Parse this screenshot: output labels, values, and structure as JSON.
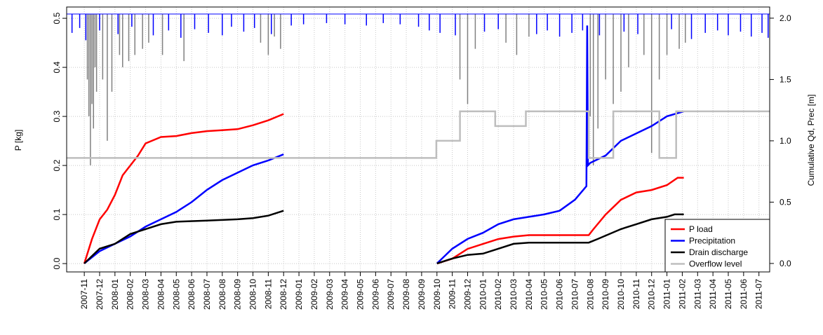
{
  "chart_data": {
    "type": "line",
    "ylabel": "P [kg]",
    "y2label": "Cumulative Qd, Prec [m]",
    "xlim": [
      -1.15,
      44.7
    ],
    "ylim": [
      -0.017,
      0.523
    ],
    "y2lim": [
      -0.069,
      2.091
    ],
    "yticks": [
      {
        "value": 0,
        "label": "0.0"
      },
      0.1,
      0.2,
      0.3,
      0.4,
      0.5
    ],
    "y2ticks": [
      {
        "value": 0,
        "label": "0.0"
      },
      0.5,
      {
        "value": 1,
        "label": "1.0"
      },
      1.5,
      {
        "value": 2,
        "label": "2.0"
      }
    ],
    "xticks": [
      {
        "value": 0,
        "label": "2007-11"
      },
      {
        "value": 1,
        "label": "2007-12"
      },
      {
        "value": 2,
        "label": "2008-01"
      },
      {
        "value": 3,
        "label": "2008-02"
      },
      {
        "value": 4,
        "label": "2008-03"
      },
      {
        "value": 5,
        "label": "2008-04"
      },
      {
        "value": 6,
        "label": "2008-05"
      },
      {
        "value": 7,
        "label": "2008-06"
      },
      {
        "value": 8,
        "label": "2008-07"
      },
      {
        "value": 9,
        "label": "2008-08"
      },
      {
        "value": 10,
        "label": "2008-09"
      },
      {
        "value": 11,
        "label": "2008-10"
      },
      {
        "value": 12,
        "label": "2008-11"
      },
      {
        "value": 13,
        "label": "2008-12"
      },
      {
        "value": 14,
        "label": "2009-01"
      },
      {
        "value": 15,
        "label": "2009-02"
      },
      {
        "value": 16,
        "label": "2009-03"
      },
      {
        "value": 17,
        "label": "2009-04"
      },
      {
        "value": 18,
        "label": "2009-05"
      },
      {
        "value": 19,
        "label": "2009-06"
      },
      {
        "value": 20,
        "label": "2009-07"
      },
      {
        "value": 21,
        "label": "2009-08"
      },
      {
        "value": 22,
        "label": "2009-09"
      },
      {
        "value": 23,
        "label": "2009-10"
      },
      {
        "value": 24,
        "label": "2009-11"
      },
      {
        "value": 25,
        "label": "2009-12"
      },
      {
        "value": 26,
        "label": "2010-01"
      },
      {
        "value": 27,
        "label": "2010-02"
      },
      {
        "value": 28,
        "label": "2010-03"
      },
      {
        "value": 29,
        "label": "2010-04"
      },
      {
        "value": 30,
        "label": "2010-05"
      },
      {
        "value": 31,
        "label": "2010-06"
      },
      {
        "value": 32,
        "label": "2010-07"
      },
      {
        "value": 33,
        "label": "2010-08"
      },
      {
        "value": 34,
        "label": "2010-09"
      },
      {
        "value": 35,
        "label": "2010-10"
      },
      {
        "value": 36,
        "label": "2010-11"
      },
      {
        "value": 37,
        "label": "2010-12"
      },
      {
        "value": 38,
        "label": "2011-01"
      },
      {
        "value": 39,
        "label": "2011-02"
      },
      {
        "value": 40,
        "label": "2011-03"
      },
      {
        "value": 41,
        "label": "2011-04"
      },
      {
        "value": 42,
        "label": "2011-05"
      },
      {
        "value": 43,
        "label": "2011-06"
      },
      {
        "value": 44,
        "label": "2011-07"
      }
    ],
    "grid": true,
    "legend": "bottom-right",
    "series": [
      {
        "name": "P load",
        "color": "#ff0000",
        "axis": "y",
        "x": [
          0,
          0.5,
          1,
          1.5,
          2,
          2.5,
          3,
          3.5,
          4,
          5,
          6,
          7,
          8,
          9,
          10,
          11,
          12,
          13,
          null,
          23,
          24,
          25,
          26,
          27,
          28,
          29,
          32.9,
          33.2,
          34,
          35,
          36,
          37,
          38,
          38.7,
          39.1
        ],
        "values": [
          0,
          0.05,
          0.09,
          0.11,
          0.14,
          0.18,
          0.2,
          0.22,
          0.245,
          0.258,
          0.26,
          0.266,
          0.27,
          0.272,
          0.274,
          0.282,
          0.292,
          0.305,
          null,
          0,
          0.01,
          0.03,
          0.04,
          0.05,
          0.055,
          0.058,
          0.058,
          0.07,
          0.1,
          0.13,
          0.145,
          0.15,
          0.16,
          0.175,
          0.175
        ]
      },
      {
        "name": "Precipitation",
        "color": "#0000ff",
        "axis": "y2",
        "x": [
          0,
          1,
          2,
          3,
          4,
          5,
          6,
          7,
          8,
          9,
          10,
          11,
          12,
          13,
          null,
          23,
          24,
          25,
          26,
          27,
          28,
          29,
          30,
          31,
          32,
          32.75,
          32.8,
          32.85,
          33,
          34,
          35,
          36,
          37,
          38,
          39.1
        ],
        "values": [
          0,
          0.1,
          0.16,
          0.22,
          0.3,
          0.36,
          0.42,
          0.5,
          0.6,
          0.68,
          0.74,
          0.8,
          0.84,
          0.89,
          null,
          0,
          0.12,
          0.2,
          0.25,
          0.32,
          0.36,
          0.38,
          0.4,
          0.43,
          0.52,
          0.63,
          1.94,
          0.8,
          0.82,
          0.88,
          1.0,
          1.06,
          1.12,
          1.2,
          1.24
        ]
      },
      {
        "name": "Drain discharge",
        "color": "#000000",
        "axis": "y2",
        "x": [
          0,
          1,
          2,
          3,
          4,
          5,
          6,
          8,
          10,
          11,
          12,
          13,
          null,
          23,
          24,
          25,
          26,
          27,
          28,
          29,
          32.9,
          33.5,
          35,
          36,
          37,
          38,
          38.5,
          39.1
        ],
        "values": [
          0,
          0.12,
          0.16,
          0.24,
          0.28,
          0.32,
          0.34,
          0.35,
          0.36,
          0.37,
          0.39,
          0.43,
          null,
          0,
          0.04,
          0.07,
          0.08,
          0.12,
          0.16,
          0.17,
          0.17,
          0.2,
          0.28,
          0.32,
          0.36,
          0.38,
          0.4,
          0.4
        ]
      },
      {
        "name": "Overflow level",
        "color": "#bebebe",
        "axis": "y2",
        "x": [
          -1.15,
          22.96,
          22.96,
          24.5,
          24.5,
          26.8,
          26.8,
          28.8,
          28.8,
          32.9,
          32.9,
          34.5,
          34.5,
          37.5,
          37.5,
          38.6,
          38.6,
          44.7
        ],
        "values": [
          0.86,
          0.86,
          1.0,
          1.0,
          1.24,
          1.24,
          1.12,
          1.12,
          1.24,
          1.24,
          0.86,
          0.86,
          1.24,
          1.24,
          0.86,
          0.86,
          1.24,
          1.24
        ]
      }
    ],
    "hanging_bars": [
      {
        "color": "#808080",
        "x": [
          0.2,
          0.3,
          0.4,
          0.5,
          0.6,
          0.7,
          0.8,
          1.2,
          1.5,
          1.8,
          2.3,
          2.5,
          2.9,
          3.3,
          3.8,
          4.2,
          5.1,
          6.5,
          11.5,
          12.0,
          12.4,
          12.8,
          24.5,
          25.0,
          25.5,
          27.5,
          28.2,
          29.0,
          33.0,
          33.2,
          33.5,
          34.0,
          34.5,
          35.0,
          35.5,
          36.5,
          37.0,
          37.5,
          38.0,
          38.8,
          39.2
        ],
        "values": [
          1.5,
          1.2,
          0.8,
          1.3,
          1.1,
          1.6,
          1.4,
          1.5,
          1.0,
          1.4,
          1.7,
          1.6,
          1.65,
          1.7,
          1.75,
          1.8,
          1.7,
          1.65,
          1.8,
          1.7,
          1.85,
          1.75,
          1.5,
          1.3,
          1.75,
          1.8,
          1.7,
          1.85,
          1.2,
          0.8,
          1.1,
          1.5,
          1.3,
          1.4,
          1.6,
          1.7,
          0.9,
          1.5,
          1.7,
          1.75,
          1.8
        ]
      },
      {
        "color": "#0000ff",
        "x": [
          -0.8,
          -0.3,
          0.1,
          1.0,
          2.2,
          3.1,
          4.5,
          5.5,
          6.3,
          7.2,
          8.1,
          9.0,
          9.6,
          10.4,
          11.1,
          12.2,
          13.5,
          14.3,
          15.8,
          17.0,
          18.4,
          19.5,
          20.6,
          21.8,
          22.5,
          23.2,
          24.2,
          26.1,
          27.0,
          29.5,
          30.2,
          31.0,
          31.8,
          32.5,
          33.6,
          35.2,
          36.1,
          38.3,
          39.6,
          40.5,
          41.3,
          42.0,
          42.8,
          43.5,
          44.2,
          44.6
        ],
        "values": [
          1.88,
          1.92,
          1.82,
          1.9,
          1.87,
          1.93,
          1.86,
          1.9,
          1.84,
          1.91,
          1.88,
          1.86,
          1.93,
          1.89,
          1.92,
          1.87,
          1.94,
          1.95,
          1.96,
          1.95,
          1.94,
          1.96,
          1.95,
          1.93,
          1.9,
          1.88,
          1.86,
          1.89,
          1.91,
          1.87,
          1.9,
          1.85,
          1.88,
          1.9,
          1.86,
          1.89,
          1.87,
          1.91,
          1.83,
          1.88,
          1.9,
          1.86,
          1.89,
          1.85,
          1.88,
          1.84
        ]
      }
    ]
  }
}
